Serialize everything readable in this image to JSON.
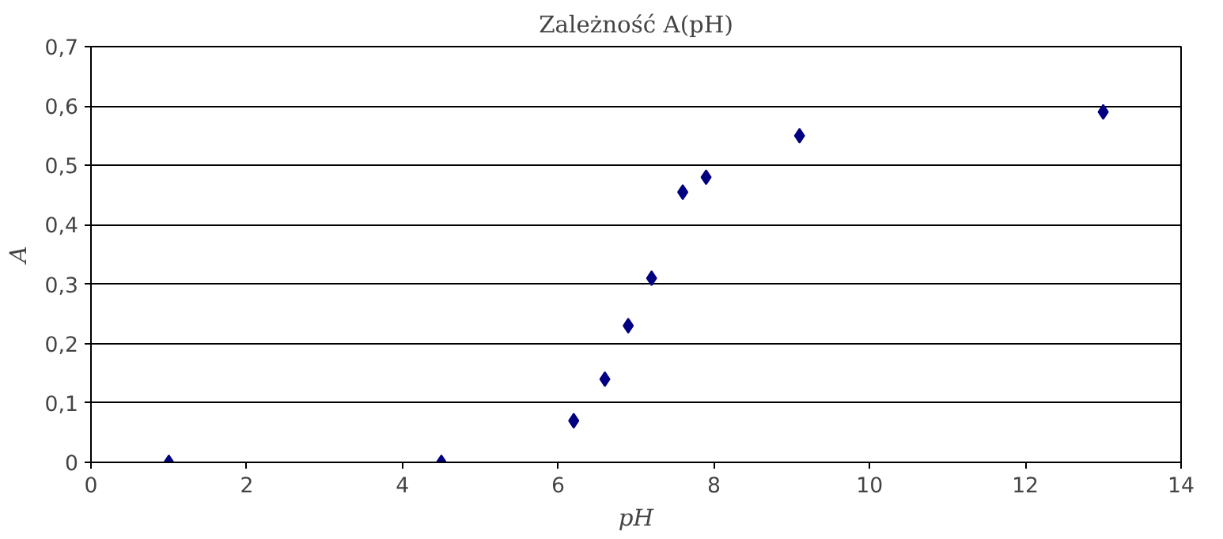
{
  "chart_data": {
    "type": "scatter",
    "title": "Zależność A(pH)",
    "xlabel": "pH",
    "ylabel": "A",
    "x": [
      1,
      4.5,
      6.2,
      6.6,
      6.9,
      7.2,
      7.6,
      7.9,
      9.1,
      13
    ],
    "series": [
      {
        "color": "#000080",
        "values": [
          0,
          0,
          0.07,
          0.14,
          0.23,
          0.31,
          0.455,
          0.48,
          0.55,
          0.59
        ]
      }
    ],
    "xlim": [
      0,
      14
    ],
    "xticks": [
      0,
      2,
      4,
      6,
      8,
      10,
      12,
      14
    ],
    "ylim": [
      0,
      0.7
    ],
    "yticks": [
      {
        "value": 0,
        "label": "0"
      },
      {
        "value": 0.1,
        "label": "0,1"
      },
      {
        "value": 0.2,
        "label": "0,2"
      },
      {
        "value": 0.3,
        "label": "0,3"
      },
      {
        "value": 0.4,
        "label": "0,4"
      },
      {
        "value": 0.5,
        "label": "0,5"
      },
      {
        "value": 0.6,
        "label": "0,6"
      },
      {
        "value": 0.7,
        "label": "0,7"
      }
    ],
    "grid": "y",
    "marker": "diamond"
  }
}
